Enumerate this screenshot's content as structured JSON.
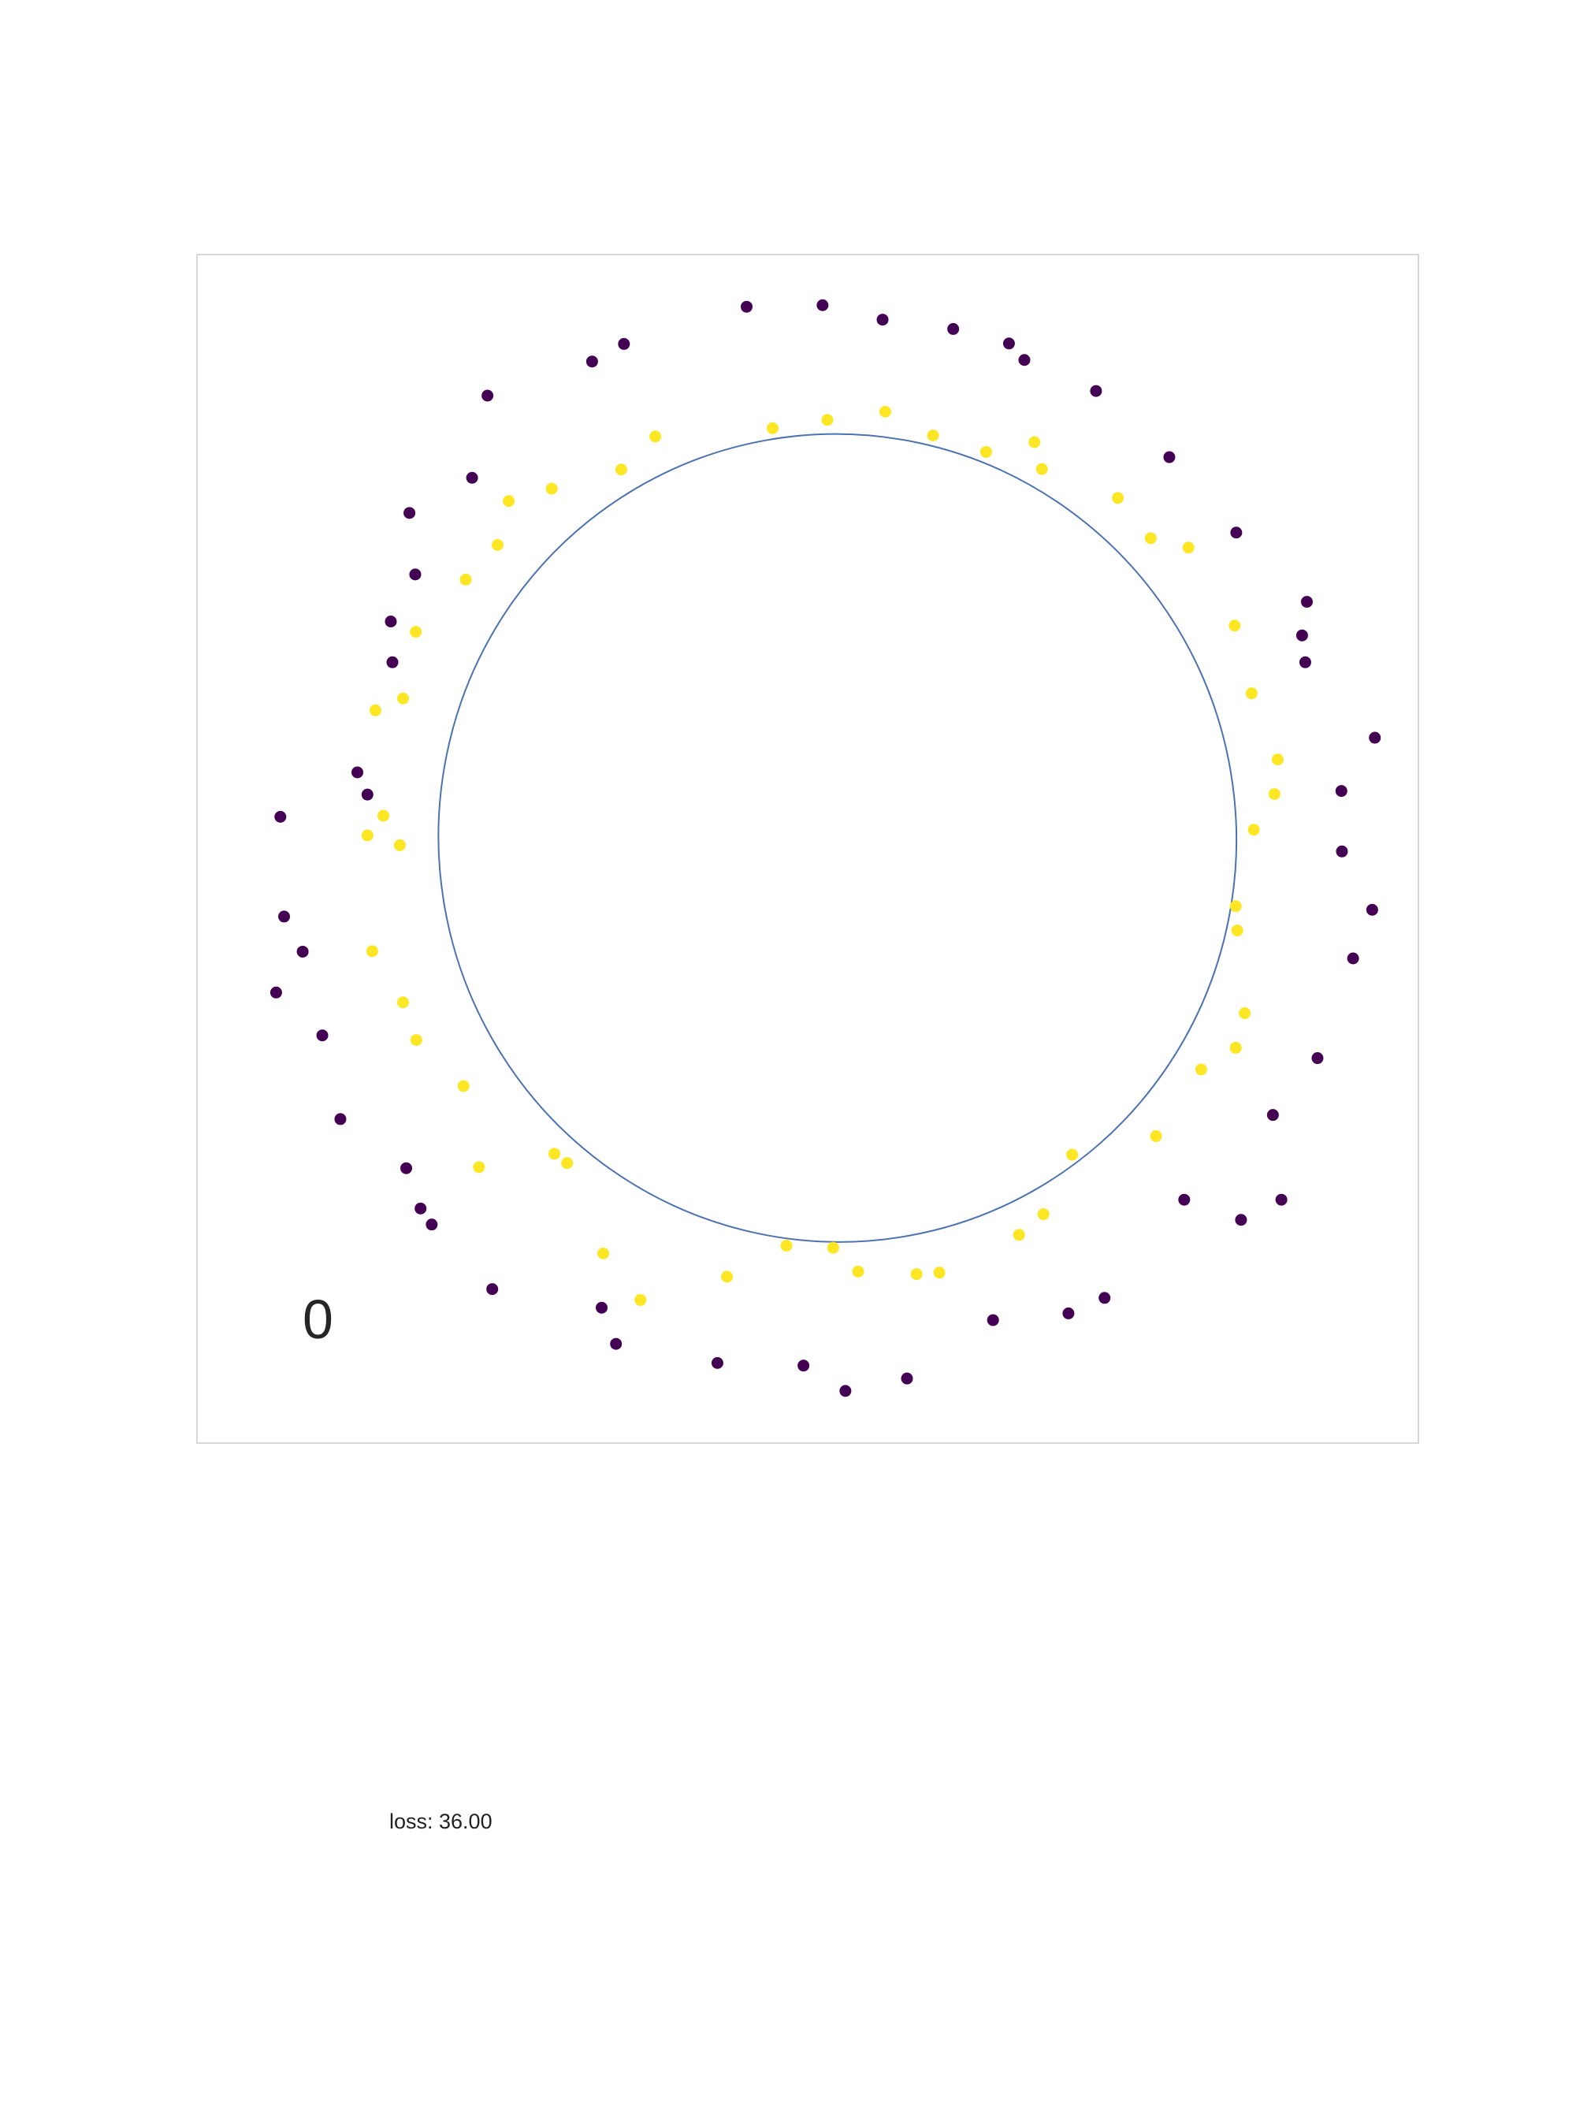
{
  "chart_data": {
    "type": "scatter",
    "frame_label": "0",
    "loss_text": "loss: 36.00",
    "xlim": [
      -1.15,
      1.15
    ],
    "ylim": [
      -1.15,
      1.15
    ],
    "grid": false,
    "axes_visible": false,
    "colors": {
      "class_0": "#440154",
      "class_1": "#fde725",
      "boundary": "#4c72b0",
      "frame": "#cccccc",
      "text": "#262626"
    },
    "decision_boundary": {
      "shape": "ellipse",
      "center": [
        0.056,
        0.021
      ],
      "semi_axis_x": 0.751,
      "semi_axis_y": 0.782,
      "rotation_deg": -10
    },
    "series": [
      {
        "label": 0,
        "points": [
          [
            -0.115,
            1.049
          ],
          [
            0.028,
            1.052
          ],
          [
            0.141,
            1.024
          ],
          [
            0.274,
            1.006
          ],
          [
            0.379,
            0.978
          ],
          [
            0.408,
            0.946
          ],
          [
            0.543,
            0.886
          ],
          [
            0.681,
            0.758
          ],
          [
            0.807,
            0.612
          ],
          [
            0.94,
            0.478
          ],
          [
            0.931,
            0.413
          ],
          [
            0.937,
            0.361
          ],
          [
            1.068,
            0.215
          ],
          [
            1.005,
            0.112
          ],
          [
            1.006,
            -0.005
          ],
          [
            1.063,
            -0.118
          ],
          [
            1.027,
            -0.212
          ],
          [
            0.96,
            -0.405
          ],
          [
            0.876,
            -0.515
          ],
          [
            0.892,
            -0.679
          ],
          [
            0.816,
            -0.718
          ],
          [
            0.709,
            -0.679
          ],
          [
            0.559,
            -0.869
          ],
          [
            0.491,
            -0.899
          ],
          [
            0.349,
            -0.912
          ],
          [
            0.187,
            -1.025
          ],
          [
            0.071,
            -1.049
          ],
          [
            -0.008,
            -1.0
          ],
          [
            -0.17,
            -0.995
          ],
          [
            -0.361,
            -0.958
          ],
          [
            -0.388,
            -0.888
          ],
          [
            -0.594,
            -0.852
          ],
          [
            -0.708,
            -0.727
          ],
          [
            -0.729,
            -0.696
          ],
          [
            -0.756,
            -0.618
          ],
          [
            -0.88,
            -0.523
          ],
          [
            -0.914,
            -0.361
          ],
          [
            -0.951,
            -0.199
          ],
          [
            -1.001,
            -0.278
          ],
          [
            -0.986,
            -0.131
          ],
          [
            -0.993,
            0.062
          ],
          [
            -0.829,
            0.105
          ],
          [
            -0.848,
            0.148
          ],
          [
            -0.782,
            0.361
          ],
          [
            -0.785,
            0.44
          ],
          [
            -0.739,
            0.531
          ],
          [
            -0.75,
            0.65
          ],
          [
            -0.632,
            0.718
          ],
          [
            -0.603,
            0.877
          ],
          [
            -0.406,
            0.943
          ],
          [
            -0.346,
            0.977
          ]
        ]
      },
      {
        "label": 1,
        "points": [
          [
            -0.066,
            0.814
          ],
          [
            0.037,
            0.83
          ],
          [
            0.146,
            0.846
          ],
          [
            0.236,
            0.8
          ],
          [
            0.336,
            0.768
          ],
          [
            0.427,
            0.787
          ],
          [
            0.441,
            0.735
          ],
          [
            0.584,
            0.679
          ],
          [
            0.646,
            0.601
          ],
          [
            0.717,
            0.583
          ],
          [
            0.804,
            0.432
          ],
          [
            0.836,
            0.301
          ],
          [
            0.885,
            0.173
          ],
          [
            0.879,
            0.106
          ],
          [
            0.84,
            0.037
          ],
          [
            0.806,
            -0.111
          ],
          [
            0.809,
            -0.158
          ],
          [
            0.823,
            -0.318
          ],
          [
            0.806,
            -0.385
          ],
          [
            0.741,
            -0.427
          ],
          [
            0.656,
            -0.556
          ],
          [
            0.498,
            -0.592
          ],
          [
            0.444,
            -0.707
          ],
          [
            0.398,
            -0.747
          ],
          [
            0.248,
            -0.82
          ],
          [
            0.205,
            -0.823
          ],
          [
            0.095,
            -0.818
          ],
          [
            0.048,
            -0.772
          ],
          [
            -0.04,
            -0.768
          ],
          [
            -0.152,
            -0.828
          ],
          [
            -0.315,
            -0.873
          ],
          [
            -0.385,
            -0.783
          ],
          [
            -0.453,
            -0.608
          ],
          [
            -0.477,
            -0.59
          ],
          [
            -0.619,
            -0.616
          ],
          [
            -0.648,
            -0.459
          ],
          [
            -0.737,
            -0.37
          ],
          [
            -0.762,
            -0.297
          ],
          [
            -0.82,
            -0.198
          ],
          [
            -0.768,
            0.007
          ],
          [
            -0.829,
            0.026
          ],
          [
            -0.799,
            0.064
          ],
          [
            -0.814,
            0.268
          ],
          [
            -0.762,
            0.291
          ],
          [
            -0.738,
            0.42
          ],
          [
            -0.644,
            0.521
          ],
          [
            -0.584,
            0.588
          ],
          [
            -0.563,
            0.673
          ],
          [
            -0.482,
            0.697
          ],
          [
            -0.351,
            0.734
          ],
          [
            -0.287,
            0.798
          ]
        ]
      }
    ]
  }
}
